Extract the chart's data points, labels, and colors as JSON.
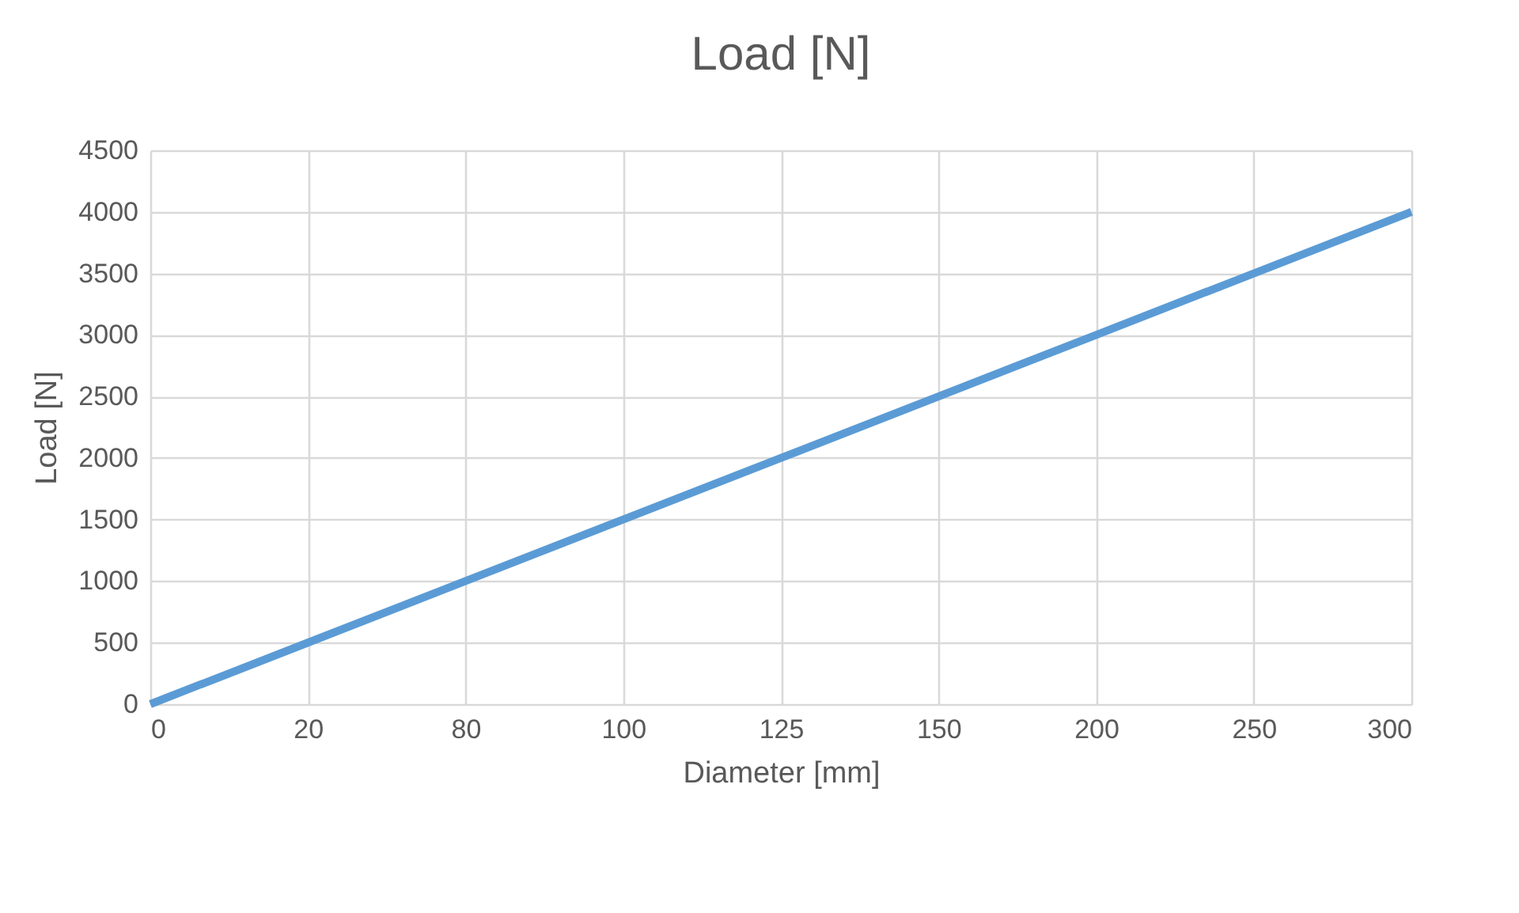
{
  "chart_data": {
    "type": "line",
    "title": "Load [N]",
    "xlabel": "Diameter [mm]",
    "ylabel": "Load [N]",
    "categories": [
      "0",
      "20",
      "80",
      "100",
      "125",
      "150",
      "200",
      "250",
      "300"
    ],
    "series": [
      {
        "color": "#5b9bd5",
        "values": [
          0,
          500,
          1000,
          1500,
          2000,
          2500,
          3000,
          3500,
          4000
        ]
      }
    ],
    "ylim": [
      0,
      4500
    ],
    "yticks": [
      0,
      500,
      1000,
      1500,
      2000,
      2500,
      3000,
      3500,
      4000,
      4500
    ],
    "grid": true,
    "marker": "none",
    "line_style": "solid"
  }
}
